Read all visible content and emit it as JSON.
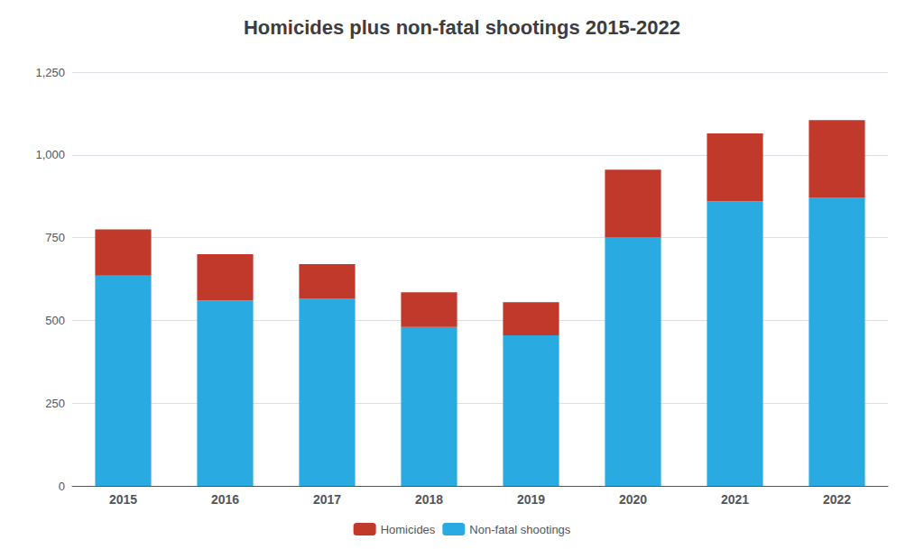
{
  "chart_data": {
    "type": "bar",
    "title": "Homicides plus non-fatal shootings 2015-2022",
    "categories": [
      "2015",
      "2016",
      "2017",
      "2018",
      "2019",
      "2020",
      "2021",
      "2022"
    ],
    "series": [
      {
        "name": "Non-fatal shootings",
        "color": "#29ABE2",
        "values": [
          635,
          560,
          565,
          480,
          455,
          750,
          860,
          870
        ]
      },
      {
        "name": "Homicides",
        "color": "#C0392B",
        "values": [
          140,
          140,
          105,
          105,
          100,
          205,
          205,
          235
        ]
      }
    ],
    "stacked": true,
    "ylim": [
      0,
      1250
    ],
    "yticks": [
      0,
      250,
      500,
      750,
      {
        "value": 1000,
        "label": "1,000"
      },
      {
        "value": 1250,
        "label": "1,250"
      }
    ],
    "grid": true,
    "legend": "bottom"
  }
}
